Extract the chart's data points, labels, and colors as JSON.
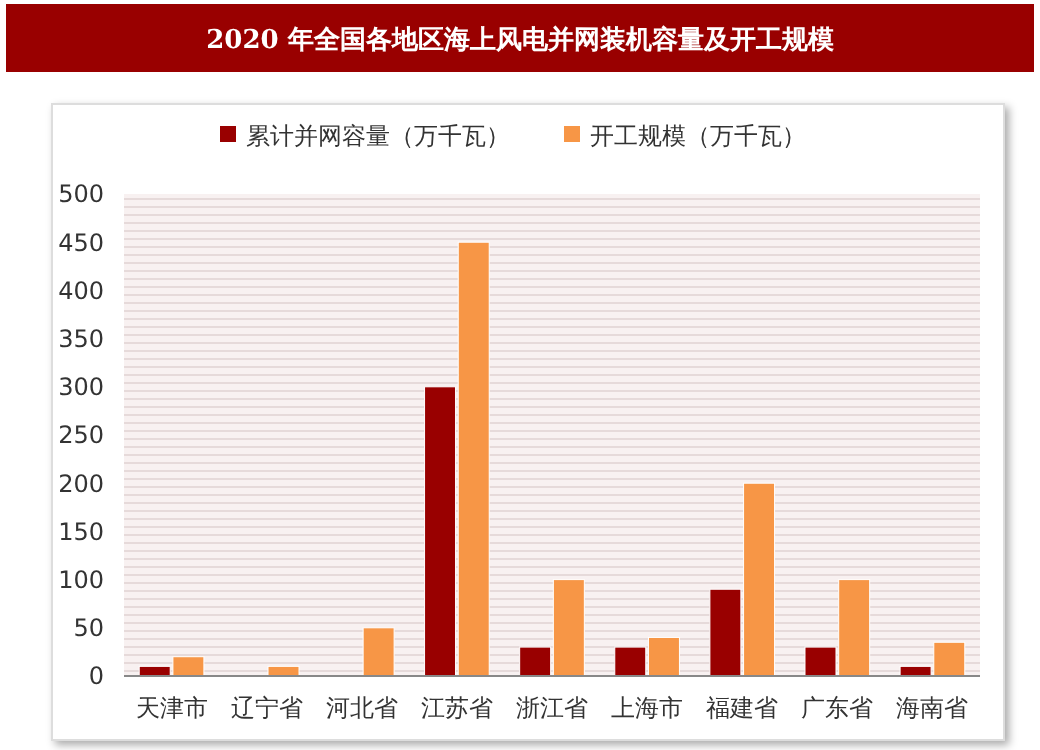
{
  "chart_data": {
    "type": "bar",
    "title": "2020 年全国各地区海上风电并网装机容量及开工规模",
    "categories": [
      "天津市",
      "辽宁省",
      "河北省",
      "江苏省",
      "浙江省",
      "上海市",
      "福建省",
      "广东省",
      "海南省"
    ],
    "series": [
      {
        "name": "累计并网容量（万千瓦）",
        "color": "#990000",
        "values": [
          10,
          0,
          0,
          300,
          30,
          30,
          90,
          30,
          10
        ]
      },
      {
        "name": "开工规模（万千瓦）",
        "color": "#f79646",
        "values": [
          20,
          10,
          50,
          450,
          100,
          40,
          200,
          100,
          35
        ]
      }
    ],
    "ylim": [
      0,
      500
    ],
    "yticks": [
      0,
      50,
      100,
      150,
      200,
      250,
      300,
      350,
      400,
      450,
      500
    ],
    "legend": "top"
  }
}
